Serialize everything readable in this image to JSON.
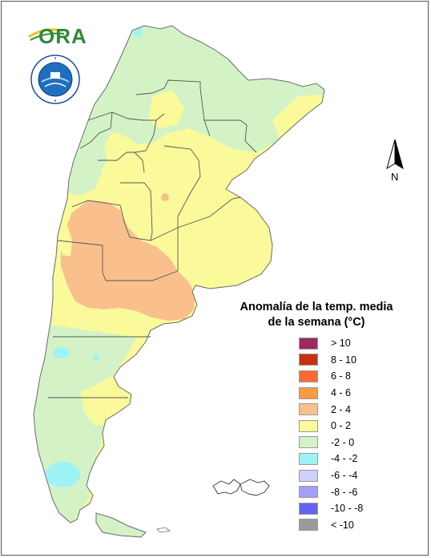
{
  "logo": {
    "text": "ORA",
    "seal_text": "SERVICIO METEOROLOGICO NACIONAL · ARGENTINA"
  },
  "compass": {
    "label": "N"
  },
  "legend": {
    "title_line1": "Anomalía de la temp. media",
    "title_line2": "de la semana (°C)",
    "items": [
      {
        "label": "> 10",
        "color": "#9b2a5e"
      },
      {
        "label": "8 - 10",
        "color": "#c8310f"
      },
      {
        "label": "6 - 8",
        "color": "#fb6a35"
      },
      {
        "label": "4 - 6",
        "color": "#fb9a40"
      },
      {
        "label": "2 - 4",
        "color": "#f9c08e"
      },
      {
        "label": "0 - 2",
        "color": "#fafa9a"
      },
      {
        "label": "-2 - 0",
        "color": "#d3f3c6"
      },
      {
        "label": "-4 - -2",
        "color": "#9ef3f5"
      },
      {
        "label": "-6 - -4",
        "color": "#cdd0f7"
      },
      {
        "label": "-8 - -6",
        "color": "#a19ff7"
      },
      {
        "label": "-10 - -8",
        "color": "#6364ef"
      },
      {
        "label": "< -10",
        "color": "#9a9a9a"
      }
    ]
  }
}
